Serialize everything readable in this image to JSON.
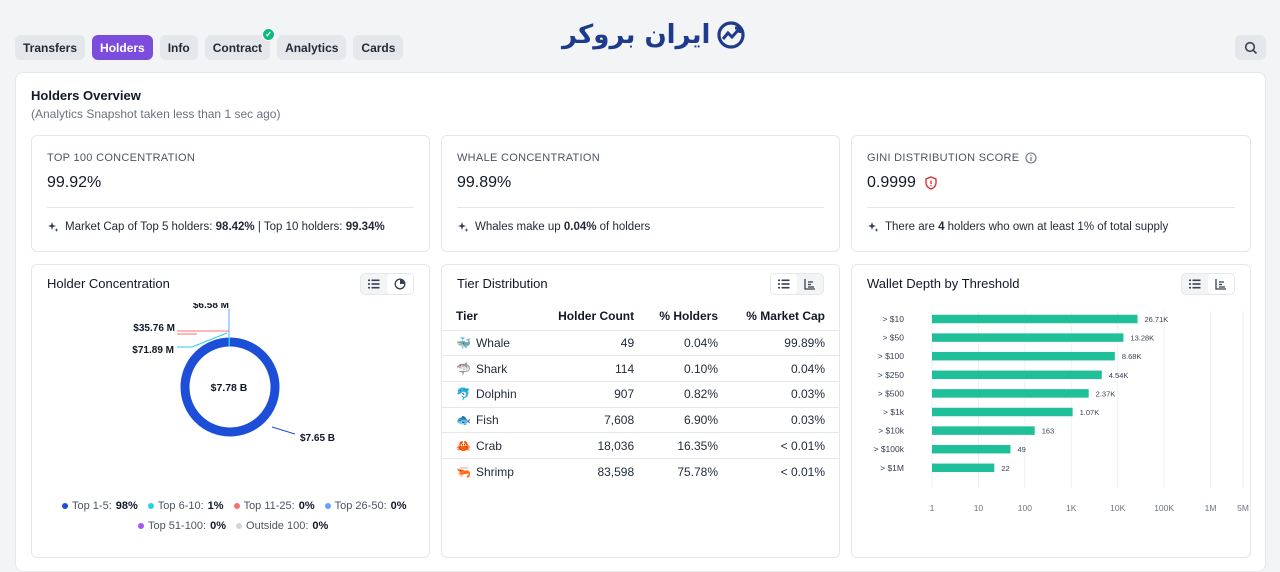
{
  "tabs": [
    {
      "label": "Transfers",
      "active": false
    },
    {
      "label": "Holders",
      "active": true
    },
    {
      "label": "Info",
      "active": false
    },
    {
      "label": "Contract",
      "active": false,
      "verified": true
    },
    {
      "label": "Analytics",
      "active": false
    },
    {
      "label": "Cards",
      "active": false
    }
  ],
  "logo": {
    "text": "ایران بروکر",
    "icon": "trend-arrow-icon"
  },
  "header": {
    "title": "Holders Overview",
    "subtitle": "(Analytics Snapshot taken less than 1 sec ago)"
  },
  "stats": [
    {
      "label": "TOP 100 CONCENTRATION",
      "value": "99.92%",
      "note_pre": "Market Cap of Top 5 holders: ",
      "note_b1": "98.42%",
      "note_mid": " | Top 10 holders: ",
      "note_b2": "99.34%",
      "note_post": ""
    },
    {
      "label": "WHALE CONCENTRATION",
      "value": "99.89%",
      "note_pre": "Whales make up ",
      "note_b1": "0.04%",
      "note_mid": " of holders",
      "note_b2": "",
      "note_post": ""
    },
    {
      "label": "GINI DISTRIBUTION SCORE",
      "value": "0.9999",
      "note_pre": "There are ",
      "note_b1": "4",
      "note_mid": " holders who own at least 1% of total supply",
      "note_b2": "",
      "note_post": ""
    }
  ],
  "concentration": {
    "title": "Holder Concentration",
    "center_label": "$7.78 B",
    "callouts": [
      "$6.58 M",
      "$35.76 M",
      "$71.89 M",
      "$7.65 B"
    ],
    "legend": [
      {
        "label": "Top 1-5:",
        "value": "98%",
        "color": "#1d4ed8"
      },
      {
        "label": "Top 6-10:",
        "value": "1%",
        "color": "#22d3ee"
      },
      {
        "label": "Top 11-25:",
        "value": "0%",
        "color": "#f87171"
      },
      {
        "label": "Top 26-50:",
        "value": "0%",
        "color": "#60a5fa"
      },
      {
        "label": "Top 51-100:",
        "value": "0%",
        "color": "#a855f7"
      },
      {
        "label": "Outside 100:",
        "value": "0%",
        "color": "#d1d5db"
      }
    ]
  },
  "tiers": {
    "title": "Tier Distribution",
    "headers": [
      "Tier",
      "Holder Count",
      "% Holders",
      "% Market Cap"
    ],
    "rows": [
      {
        "icon": "whale-icon",
        "emoji": "🐳",
        "tier": "Whale",
        "count": "49",
        "holders": "0.04%",
        "cap": "99.89%"
      },
      {
        "icon": "shark-icon",
        "emoji": "🦈",
        "tier": "Shark",
        "count": "114",
        "holders": "0.10%",
        "cap": "0.04%"
      },
      {
        "icon": "dolphin-icon",
        "emoji": "🐬",
        "tier": "Dolphin",
        "count": "907",
        "holders": "0.82%",
        "cap": "0.03%"
      },
      {
        "icon": "fish-icon",
        "emoji": "🐟",
        "tier": "Fish",
        "count": "7,608",
        "holders": "6.90%",
        "cap": "0.03%"
      },
      {
        "icon": "crab-icon",
        "emoji": "🦀",
        "tier": "Crab",
        "count": "18,036",
        "holders": "16.35%",
        "cap": "< 0.01%"
      },
      {
        "icon": "shrimp-icon",
        "emoji": "🦐",
        "tier": "Shrimp",
        "count": "83,598",
        "holders": "75.78%",
        "cap": "< 0.01%"
      }
    ]
  },
  "depth": {
    "title": "Wallet Depth by Threshold",
    "bar_color": "#1fbf9a"
  },
  "chart_data": {
    "type": "bar",
    "orientation": "horizontal",
    "scale": "log",
    "categories": [
      "> $10",
      "> $50",
      "> $100",
      "> $250",
      "> $500",
      "> $1k",
      "> $10k",
      "> $100k",
      "> $1M"
    ],
    "values": [
      26710,
      13280,
      8680,
      4540,
      2370,
      1070,
      163,
      49,
      22
    ],
    "value_labels": [
      "26.71K",
      "13.28K",
      "8.68K",
      "4.54K",
      "2.37K",
      "1.07K",
      "163",
      "49",
      "22"
    ],
    "x_ticks": [
      1,
      10,
      100,
      1000,
      10000,
      100000,
      1000000,
      5000000
    ],
    "x_tick_labels": [
      "1",
      "10",
      "100",
      "1K",
      "10K",
      "100K",
      "1M",
      "5M"
    ],
    "xlim": [
      1,
      5000000
    ]
  }
}
